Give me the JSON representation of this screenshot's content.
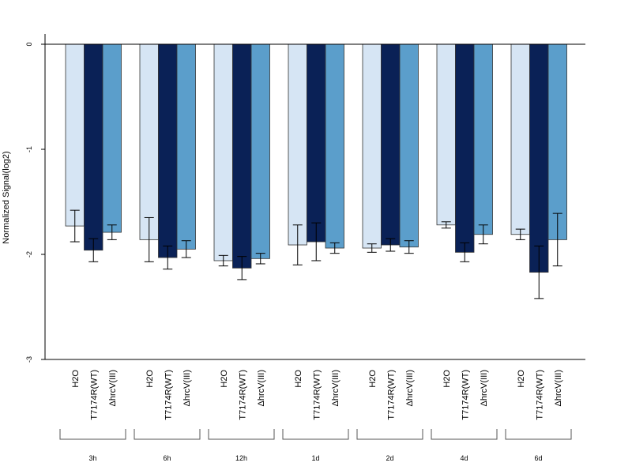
{
  "chart_data": {
    "type": "bar",
    "ylabel": "Normalized Signal(log2)",
    "ylim": [
      -3,
      0.1
    ],
    "yticks": [
      0,
      -1,
      -2,
      -3
    ],
    "groups": [
      "3h",
      "6h",
      "12h",
      "1d",
      "2d",
      "4d",
      "6d"
    ],
    "bar_labels": [
      "H2O",
      "T7174R(WT)",
      "ΔhrcV(III)"
    ],
    "colors": [
      "#d6e5f4",
      "#0a2156",
      "#5b9ecb"
    ],
    "series": [
      {
        "name": "H2O",
        "values": [
          -1.73,
          -1.86,
          -2.06,
          -1.91,
          -1.94,
          -1.72,
          -1.81
        ],
        "errors": [
          0.15,
          0.21,
          0.05,
          0.19,
          0.04,
          0.03,
          0.05
        ]
      },
      {
        "name": "T7174R(WT)",
        "values": [
          -1.96,
          -2.03,
          -2.13,
          -1.88,
          -1.91,
          -1.98,
          -2.17
        ],
        "errors": [
          0.11,
          0.11,
          0.11,
          0.18,
          0.06,
          0.09,
          0.25
        ]
      },
      {
        "name": "ΔhrcV(III)",
        "values": [
          -1.79,
          -1.95,
          -2.04,
          -1.94,
          -1.93,
          -1.81,
          -1.86
        ],
        "errors": [
          0.07,
          0.08,
          0.05,
          0.05,
          0.06,
          0.09,
          0.25
        ]
      }
    ]
  }
}
